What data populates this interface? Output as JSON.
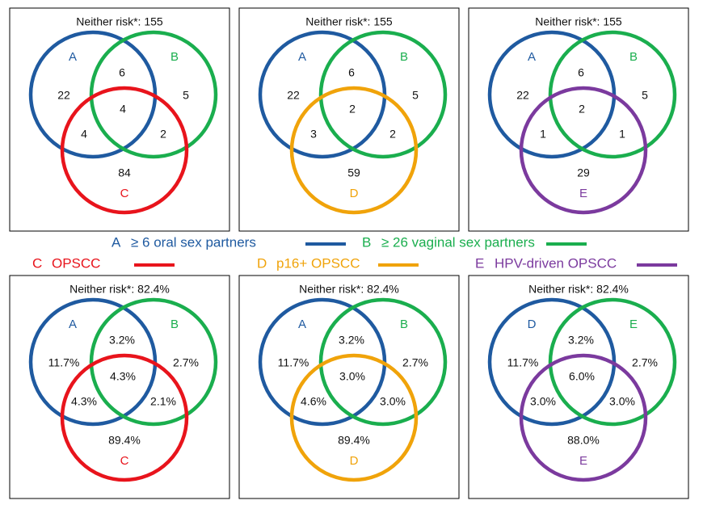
{
  "colors": {
    "A": "#1f5aa0",
    "B": "#1aae4e",
    "C": "#e8141c",
    "D": "#f0a30a",
    "E": "#7b3a9e"
  },
  "panels": [
    {
      "title": "Neither risk*: 155",
      "sets": [
        {
          "label": "A",
          "color": "A"
        },
        {
          "label": "B",
          "color": "B"
        },
        {
          "label": "C",
          "color": "C"
        }
      ],
      "regions": {
        "a_only": "22",
        "ab": "6",
        "b_only": "5",
        "abc": "4",
        "ac": "4",
        "bc": "2",
        "c_only": "84"
      }
    },
    {
      "title": "Neither risk*: 155",
      "sets": [
        {
          "label": "A",
          "color": "A"
        },
        {
          "label": "B",
          "color": "B"
        },
        {
          "label": "D",
          "color": "D"
        }
      ],
      "regions": {
        "a_only": "22",
        "ab": "6",
        "b_only": "5",
        "abc": "2",
        "ac": "3",
        "bc": "2",
        "c_only": "59"
      }
    },
    {
      "title": "Neither risk*: 155",
      "sets": [
        {
          "label": "A",
          "color": "A"
        },
        {
          "label": "B",
          "color": "B"
        },
        {
          "label": "E",
          "color": "E"
        }
      ],
      "regions": {
        "a_only": "22",
        "ab": "6",
        "b_only": "5",
        "abc": "2",
        "ac": "1",
        "bc": "1",
        "c_only": "29"
      }
    },
    {
      "title": "Neither risk*: 82.4%",
      "sets": [
        {
          "label": "A",
          "color": "A"
        },
        {
          "label": "B",
          "color": "B"
        },
        {
          "label": "C",
          "color": "C"
        }
      ],
      "regions": {
        "a_only": "11.7%",
        "ab": "3.2%",
        "b_only": "2.7%",
        "abc": "4.3%",
        "ac": "4.3%",
        "bc": "2.1%",
        "c_only": "89.4%"
      }
    },
    {
      "title": "Neither risk*: 82.4%",
      "sets": [
        {
          "label": "A",
          "color": "A"
        },
        {
          "label": "B",
          "color": "B"
        },
        {
          "label": "D",
          "color": "D"
        }
      ],
      "regions": {
        "a_only": "11.7%",
        "ab": "3.2%",
        "b_only": "2.7%",
        "abc": "3.0%",
        "ac": "4.6%",
        "bc": "3.0%",
        "c_only": "89.4%"
      }
    },
    {
      "title": "Neither risk*: 82.4%",
      "sets": [
        {
          "label": "D",
          "color": "A"
        },
        {
          "label": "E",
          "color": "B"
        },
        {
          "label": "E",
          "color": "E"
        }
      ],
      "regions": {
        "a_only": "11.7%",
        "ab": "3.2%",
        "b_only": "2.7%",
        "abc": "6.0%",
        "ac": "3.0%",
        "bc": "3.0%",
        "c_only": "88.0%"
      }
    }
  ],
  "legend": [
    {
      "letter": "A",
      "text": "≥ 6 oral sex partners",
      "color": "A"
    },
    {
      "letter": "B",
      "text": "≥ 26 vaginal sex partners",
      "color": "B"
    },
    {
      "letter": "C",
      "text": "OPSCC",
      "color": "C"
    },
    {
      "letter": "D",
      "text": "p16+ OPSCC",
      "color": "D"
    },
    {
      "letter": "E",
      "text": "HPV-driven OPSCC",
      "color": "E"
    }
  ]
}
